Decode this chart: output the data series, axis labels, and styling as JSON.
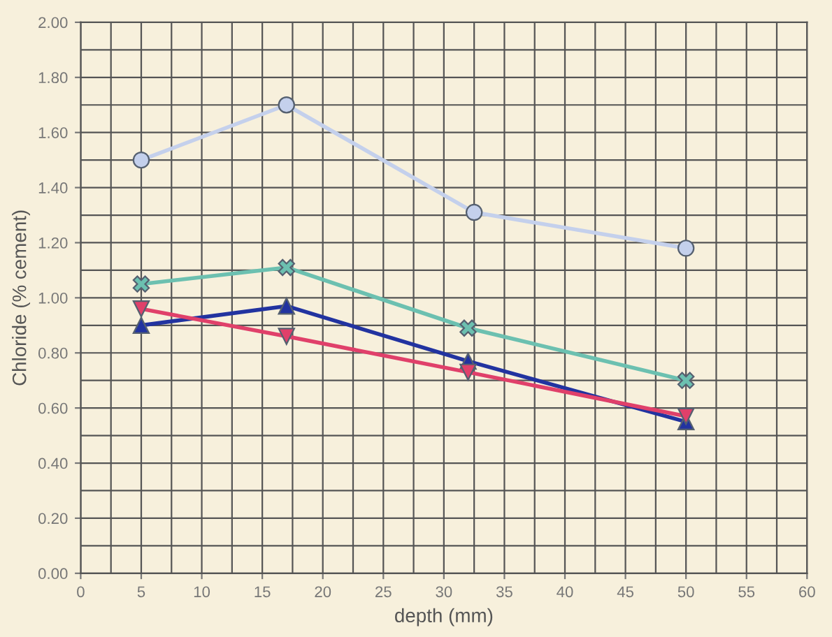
{
  "chart_data": {
    "type": "line",
    "xlabel": "depth (mm)",
    "ylabel": "Chloride (% cement)",
    "xlim": [
      0,
      60
    ],
    "xticks": [
      0,
      5,
      10,
      15,
      20,
      25,
      30,
      35,
      40,
      45,
      50,
      55,
      60
    ],
    "ylim": [
      0,
      2.0
    ],
    "yticks": [
      {
        "value": 0,
        "label": "0.00"
      },
      {
        "value": 0.2,
        "label": "0.20"
      },
      {
        "value": 0.4,
        "label": "0.40"
      },
      {
        "value": 0.6,
        "label": "0.60"
      },
      {
        "value": 0.8,
        "label": "0.80"
      },
      {
        "value": 1.0,
        "label": "1.00"
      },
      {
        "value": 1.2,
        "label": "1.20"
      },
      {
        "value": 1.4,
        "label": "1.40"
      },
      {
        "value": 1.6,
        "label": "1.60"
      },
      {
        "value": 1.8,
        "label": "1.80"
      },
      {
        "value": 2.0,
        "label": "2.00"
      }
    ],
    "grid": true,
    "line_style": "solid",
    "series": [
      {
        "color": "#c4d0ec",
        "marker": "circle",
        "x": [
          5,
          17,
          32.5,
          50
        ],
        "values": [
          1.5,
          1.7,
          1.31,
          1.18
        ]
      },
      {
        "color": "#6cc0b0",
        "marker": "cross",
        "x": [
          5,
          17,
          32,
          50
        ],
        "values": [
          1.05,
          1.11,
          0.89,
          0.7
        ]
      },
      {
        "color": "#2233a0",
        "marker": "triangle",
        "x": [
          5,
          17,
          32,
          50
        ],
        "values": [
          0.9,
          0.97,
          0.77,
          0.55
        ]
      },
      {
        "color": "#e0406a",
        "marker": "triangle_down",
        "x": [
          5,
          17,
          32,
          50
        ],
        "values": [
          0.96,
          0.86,
          0.73,
          0.57
        ]
      }
    ]
  }
}
